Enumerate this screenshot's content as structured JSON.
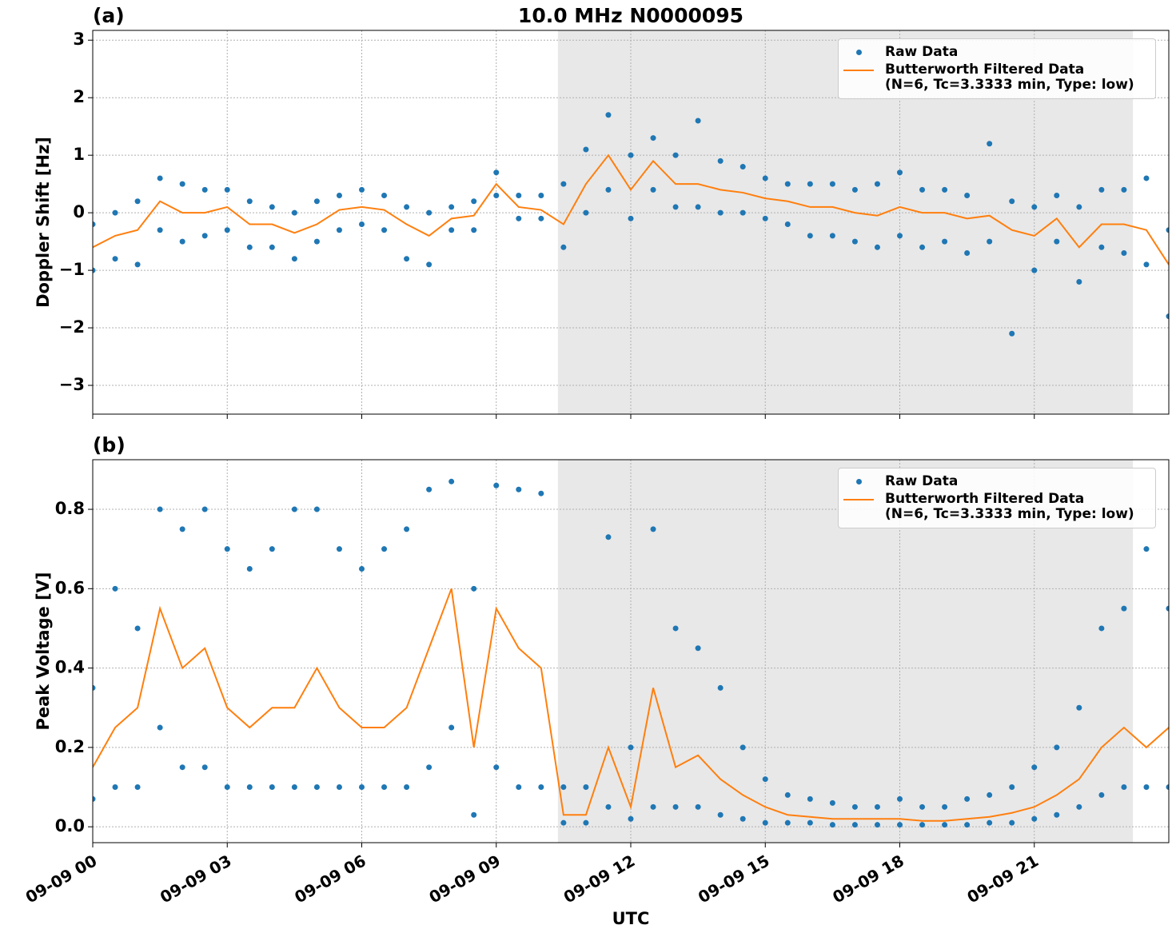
{
  "chart_data": [
    {
      "type": "scatter",
      "panel_label": "(a)",
      "title": "10.0 MHz N0000095",
      "ylabel": "Doppler Shift [Hz]",
      "xlim": [
        0,
        24
      ],
      "sharex": true,
      "ylim": [
        -3.5,
        3.17
      ],
      "yticks": [
        {
          "value": -3,
          "label": "−3"
        },
        {
          "value": -2,
          "label": "−2"
        },
        {
          "value": -1,
          "label": "−1"
        },
        0,
        1,
        2,
        3
      ],
      "grid": true,
      "legend": "upper right",
      "shaded_span": [
        10.375,
        23.2
      ],
      "shaded_color": "#e8e8e8",
      "series": [
        {
          "name": "Raw Data",
          "type": "scatter",
          "color": "#1f77b4",
          "x": [
            0,
            0,
            0.5,
            0.5,
            1,
            1,
            1.5,
            1.5,
            2,
            2,
            2.5,
            2.5,
            3,
            3,
            3.5,
            3.5,
            4,
            4,
            4.5,
            4.5,
            5,
            5,
            5.5,
            5.5,
            6,
            6,
            6.5,
            6.5,
            7,
            7,
            7.5,
            7.5,
            8,
            8,
            8.5,
            8.5,
            9,
            9,
            9.5,
            9.5,
            10,
            10,
            10.5,
            10.5,
            11,
            11,
            11.5,
            11.5,
            12,
            12,
            12.5,
            12.5,
            13,
            13,
            13.5,
            13.5,
            14,
            14,
            14.5,
            14.5,
            15,
            15,
            15.5,
            15.5,
            16,
            16,
            16.5,
            16.5,
            17,
            17,
            17.5,
            17.5,
            18,
            18,
            18.5,
            18.5,
            19,
            19,
            19.5,
            19.5,
            20,
            20,
            20.5,
            20.5,
            21,
            21,
            21.5,
            21.5,
            22,
            22,
            22.5,
            22.5,
            23,
            23,
            23.5,
            23.5,
            24,
            24
          ],
          "values": [
            -0.2,
            -1.0,
            0.0,
            -0.8,
            0.2,
            -0.9,
            0.6,
            -0.3,
            0.5,
            -0.5,
            0.4,
            -0.4,
            0.4,
            -0.3,
            0.2,
            -0.6,
            0.1,
            -0.6,
            0.0,
            -0.8,
            0.2,
            -0.5,
            0.3,
            -0.3,
            0.4,
            -0.2,
            0.3,
            -0.3,
            0.1,
            -0.8,
            0.0,
            -0.9,
            0.1,
            -0.3,
            0.2,
            -0.3,
            0.7,
            0.3,
            0.3,
            -0.1,
            0.3,
            -0.1,
            0.5,
            -0.6,
            1.1,
            0.0,
            1.7,
            0.4,
            1.0,
            -0.1,
            1.3,
            0.4,
            1.0,
            0.1,
            1.6,
            0.1,
            0.9,
            0.0,
            0.8,
            0.0,
            0.6,
            -0.1,
            0.5,
            -0.2,
            0.5,
            -0.4,
            0.5,
            -0.4,
            0.4,
            -0.5,
            0.5,
            -0.6,
            0.7,
            -0.4,
            0.4,
            -0.6,
            0.4,
            -0.5,
            0.3,
            -0.7,
            1.2,
            -0.5,
            0.2,
            -2.1,
            0.1,
            -1.0,
            0.3,
            -0.5,
            0.1,
            -1.2,
            0.4,
            -0.6,
            0.4,
            -0.7,
            0.6,
            -0.9,
            -0.3,
            -1.8
          ]
        },
        {
          "name": "Butterworth Filtered Data\n(N=6, Tc=3.3333 min, Type: low)",
          "type": "line",
          "color": "#ff7f0e",
          "x": [
            0,
            0.5,
            1,
            1.5,
            2,
            2.5,
            3,
            3.5,
            4,
            4.5,
            5,
            5.5,
            6,
            6.5,
            7,
            7.5,
            8,
            8.5,
            9,
            9.5,
            10,
            10.5,
            11,
            11.5,
            12,
            12.5,
            13,
            13.5,
            14,
            14.5,
            15,
            15.5,
            16,
            16.5,
            17,
            17.5,
            18,
            18.5,
            19,
            19.5,
            20,
            20.5,
            21,
            21.5,
            22,
            22.5,
            23,
            23.5,
            24
          ],
          "values": [
            -0.6,
            -0.4,
            -0.3,
            0.2,
            0.0,
            0.0,
            0.1,
            -0.2,
            -0.2,
            -0.35,
            -0.2,
            0.05,
            0.1,
            0.05,
            -0.2,
            -0.4,
            -0.1,
            -0.05,
            0.5,
            0.1,
            0.05,
            -0.2,
            0.5,
            1.0,
            0.4,
            0.9,
            0.5,
            0.5,
            0.4,
            0.35,
            0.25,
            0.2,
            0.1,
            0.1,
            0.0,
            -0.05,
            0.1,
            0.0,
            0.0,
            -0.1,
            -0.05,
            -0.3,
            -0.4,
            -0.1,
            -0.6,
            -0.2,
            -0.2,
            -0.3,
            -0.9
          ]
        }
      ]
    },
    {
      "type": "scatter",
      "panel_label": "(b)",
      "ylabel": "Peak Voltage [V]",
      "xlabel": "UTC",
      "xlim": [
        0,
        24
      ],
      "xticks": [
        {
          "value": 0,
          "label": "09-09 00"
        },
        {
          "value": 3,
          "label": "09-09 03"
        },
        {
          "value": 6,
          "label": "09-09 06"
        },
        {
          "value": 9,
          "label": "09-09 09"
        },
        {
          "value": 12,
          "label": "09-09 12"
        },
        {
          "value": 15,
          "label": "09-09 15"
        },
        {
          "value": 18,
          "label": "09-09 18"
        },
        {
          "value": 21,
          "label": "09-09 21"
        }
      ],
      "ylim": [
        -0.04,
        0.925
      ],
      "yticks": [
        {
          "value": 0,
          "label": "0.0"
        },
        0.2,
        0.4,
        0.6,
        0.8
      ],
      "grid": true,
      "legend": "upper right",
      "shaded_span": [
        10.375,
        23.2
      ],
      "shaded_color": "#e8e8e8",
      "series": [
        {
          "name": "Raw Data",
          "type": "scatter",
          "color": "#1f77b4",
          "x": [
            0,
            0,
            0.5,
            0.5,
            1,
            1,
            1.5,
            1.5,
            2,
            2,
            2.5,
            2.5,
            3,
            3,
            3.5,
            3.5,
            4,
            4,
            4.5,
            4.5,
            5,
            5,
            5.5,
            5.5,
            6,
            6,
            6.5,
            6.5,
            7,
            7,
            7.5,
            7.5,
            8,
            8,
            8.5,
            8.5,
            9,
            9,
            9.5,
            9.5,
            10,
            10,
            10.5,
            10.5,
            11,
            11,
            11.5,
            11.5,
            12,
            12,
            12.5,
            12.5,
            13,
            13,
            13.5,
            13.5,
            14,
            14,
            14.5,
            14.5,
            15,
            15,
            15.5,
            15.5,
            16,
            16,
            16.5,
            16.5,
            17,
            17,
            17.5,
            17.5,
            18,
            18,
            18.5,
            18.5,
            19,
            19,
            19.5,
            19.5,
            20,
            20,
            20.5,
            20.5,
            21,
            21,
            21.5,
            21.5,
            22,
            22,
            22.5,
            22.5,
            23,
            23,
            23.5,
            23.5,
            24,
            24
          ],
          "values": [
            0.35,
            0.07,
            0.6,
            0.1,
            0.5,
            0.1,
            0.8,
            0.25,
            0.75,
            0.15,
            0.8,
            0.15,
            0.7,
            0.1,
            0.65,
            0.1,
            0.7,
            0.1,
            0.8,
            0.1,
            0.8,
            0.1,
            0.7,
            0.1,
            0.65,
            0.1,
            0.7,
            0.1,
            0.75,
            0.1,
            0.85,
            0.15,
            0.87,
            0.25,
            0.6,
            0.03,
            0.86,
            0.15,
            0.85,
            0.1,
            0.84,
            0.1,
            0.1,
            0.01,
            0.1,
            0.01,
            0.73,
            0.05,
            0.2,
            0.02,
            0.75,
            0.05,
            0.5,
            0.05,
            0.45,
            0.05,
            0.35,
            0.03,
            0.2,
            0.02,
            0.12,
            0.01,
            0.08,
            0.01,
            0.07,
            0.01,
            0.06,
            0.005,
            0.05,
            0.005,
            0.05,
            0.005,
            0.07,
            0.005,
            0.05,
            0.005,
            0.05,
            0.005,
            0.07,
            0.005,
            0.08,
            0.01,
            0.1,
            0.01,
            0.15,
            0.02,
            0.2,
            0.03,
            0.3,
            0.05,
            0.5,
            0.08,
            0.55,
            0.1,
            0.7,
            0.1,
            0.55,
            0.1
          ]
        },
        {
          "name": "Butterworth Filtered Data\n(N=6, Tc=3.3333 min, Type: low)",
          "type": "line",
          "color": "#ff7f0e",
          "x": [
            0,
            0.5,
            1,
            1.5,
            2,
            2.5,
            3,
            3.5,
            4,
            4.5,
            5,
            5.5,
            6,
            6.5,
            7,
            7.5,
            8,
            8.5,
            9,
            9.5,
            10,
            10.5,
            11,
            11.5,
            12,
            12.5,
            13,
            13.5,
            14,
            14.5,
            15,
            15.5,
            16,
            16.5,
            17,
            17.5,
            18,
            18.5,
            19,
            19.5,
            20,
            20.5,
            21,
            21.5,
            22,
            22.5,
            23,
            23.5,
            24
          ],
          "values": [
            0.15,
            0.25,
            0.3,
            0.55,
            0.4,
            0.45,
            0.3,
            0.25,
            0.3,
            0.3,
            0.4,
            0.3,
            0.25,
            0.25,
            0.3,
            0.45,
            0.6,
            0.2,
            0.55,
            0.45,
            0.4,
            0.03,
            0.03,
            0.2,
            0.05,
            0.35,
            0.15,
            0.18,
            0.12,
            0.08,
            0.05,
            0.03,
            0.025,
            0.02,
            0.02,
            0.02,
            0.02,
            0.015,
            0.015,
            0.02,
            0.025,
            0.035,
            0.05,
            0.08,
            0.12,
            0.2,
            0.25,
            0.2,
            0.25
          ]
        }
      ]
    }
  ]
}
